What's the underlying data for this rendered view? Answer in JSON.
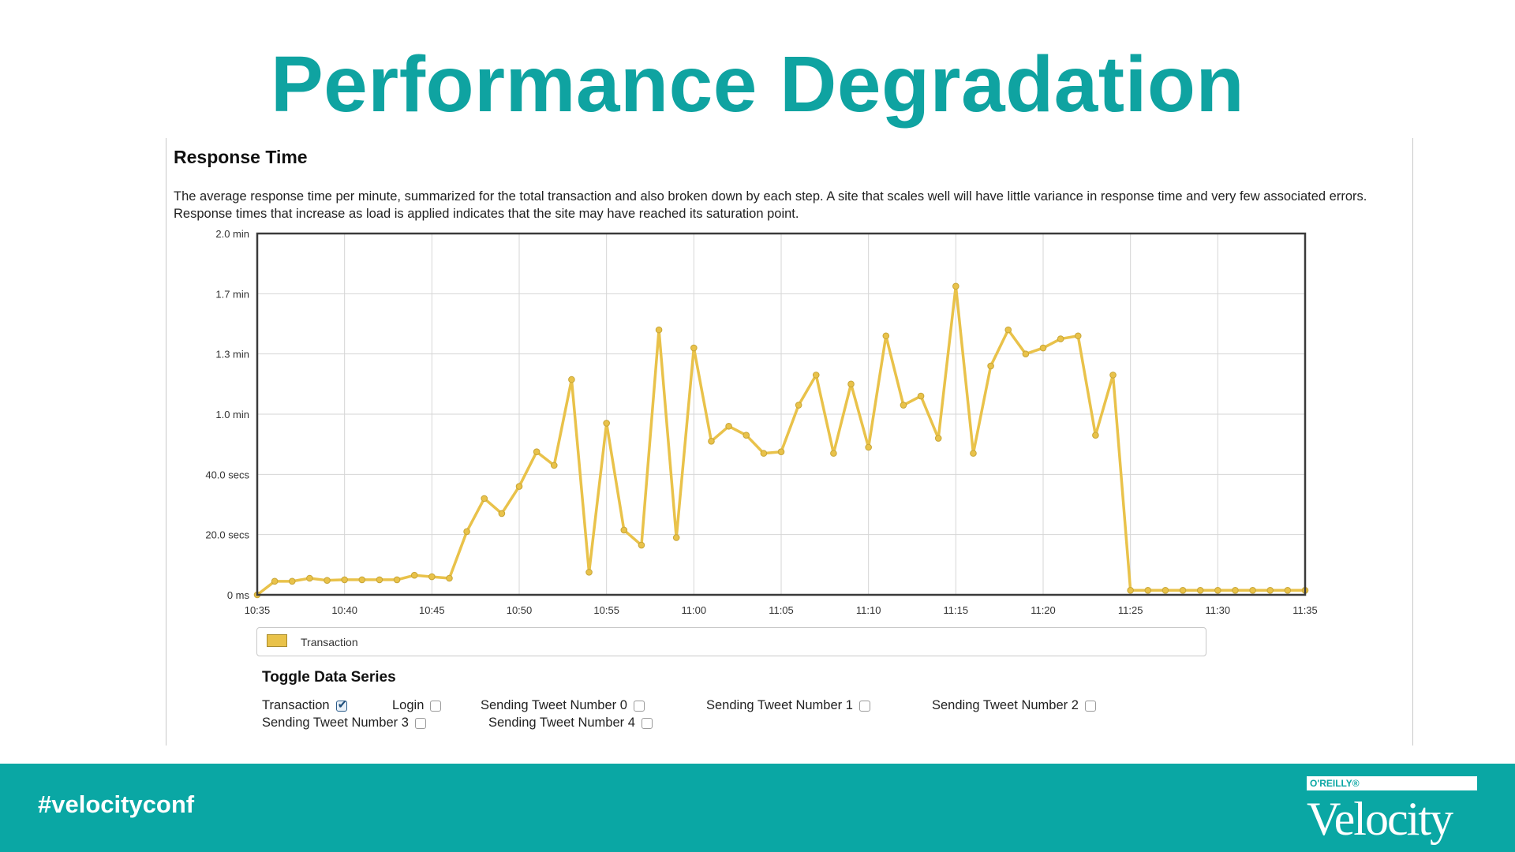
{
  "slide": {
    "title": "Performance Degradation",
    "hashtag": "#velocityconf",
    "logo": {
      "publisher": "O'REILLY®",
      "brand": "Velocity"
    }
  },
  "panel": {
    "heading": "Response Time",
    "description": "The average response time per minute, summarized for the total transaction and also broken down by each step. A site that scales well will have little variance in response time and very few associated errors. Response times that increase as load is applied indicates that the site may have reached its saturation point."
  },
  "legend": {
    "label": "Transaction",
    "swatch_color": "#e9c24a"
  },
  "toggles": {
    "title": "Toggle Data Series",
    "items": [
      {
        "label": "Transaction",
        "checked": true
      },
      {
        "label": "Login",
        "checked": false
      },
      {
        "label": "Sending Tweet Number 0",
        "checked": false
      },
      {
        "label": "Sending Tweet Number 1",
        "checked": false
      },
      {
        "label": "Sending Tweet Number 2",
        "checked": false
      },
      {
        "label": "Sending Tweet Number 3",
        "checked": false
      },
      {
        "label": "Sending Tweet Number 4",
        "checked": false
      }
    ]
  },
  "colors": {
    "teal": "#0fa3a1",
    "line": "#e9c24a",
    "marker_stroke": "#c7a536",
    "grid": "#d6d6d6"
  },
  "chart_data": {
    "type": "line",
    "title": "Response Time",
    "xlabel": "",
    "ylabel": "",
    "y_unit": "seconds",
    "ylim": [
      0,
      120
    ],
    "yticks": [
      {
        "value": 0,
        "label": "0 ms"
      },
      {
        "value": 20,
        "label": "20.0 secs"
      },
      {
        "value": 40,
        "label": "40.0 secs"
      },
      {
        "value": 60,
        "label": "1.0 min"
      },
      {
        "value": 80,
        "label": "1.3 min"
      },
      {
        "value": 100,
        "label": "1.7 min"
      },
      {
        "value": 120,
        "label": "2.0 min"
      }
    ],
    "x_start": "10:35",
    "xlim_minutes": [
      0,
      60
    ],
    "xticks": [
      {
        "value": 0,
        "label": "10:35"
      },
      {
        "value": 5,
        "label": "10:40"
      },
      {
        "value": 10,
        "label": "10:45"
      },
      {
        "value": 15,
        "label": "10:50"
      },
      {
        "value": 20,
        "label": "10:55"
      },
      {
        "value": 25,
        "label": "11:00"
      },
      {
        "value": 30,
        "label": "11:05"
      },
      {
        "value": 35,
        "label": "11:10"
      },
      {
        "value": 40,
        "label": "11:15"
      },
      {
        "value": 45,
        "label": "11:20"
      },
      {
        "value": 50,
        "label": "11:25"
      },
      {
        "value": 55,
        "label": "11:30"
      },
      {
        "value": 60,
        "label": "11:35"
      }
    ],
    "grid": true,
    "legend_position": "bottom",
    "series": [
      {
        "name": "Transaction",
        "x": [
          0,
          1,
          2,
          3,
          4,
          5,
          6,
          7,
          8,
          9,
          10,
          11,
          12,
          13,
          14,
          15,
          16,
          17,
          18,
          19,
          20,
          21,
          22,
          23,
          24,
          25,
          26,
          27,
          28,
          29,
          30,
          31,
          32,
          33,
          34,
          35,
          36,
          37,
          38,
          39,
          40,
          41,
          42,
          43,
          44,
          45,
          46,
          47,
          48,
          49,
          50,
          51,
          52,
          53,
          54,
          55,
          56,
          57,
          58,
          59,
          60
        ],
        "values": [
          0,
          4.5,
          4.5,
          5.5,
          4.8,
          5,
          5,
          5,
          5,
          6.5,
          6,
          5.5,
          21,
          32,
          27,
          36,
          47.5,
          43,
          71.5,
          7.5,
          57,
          21.5,
          16.5,
          88,
          19,
          82,
          51,
          56,
          53,
          47,
          47.5,
          63,
          73,
          47,
          70,
          49,
          86,
          63,
          66,
          52,
          102.5,
          47,
          76,
          88,
          80,
          82,
          85,
          86,
          53,
          73,
          1.5,
          1.5,
          1.5,
          1.5,
          1.5,
          1.5,
          1.5,
          1.5,
          1.5,
          1.5,
          1.5
        ]
      }
    ]
  }
}
